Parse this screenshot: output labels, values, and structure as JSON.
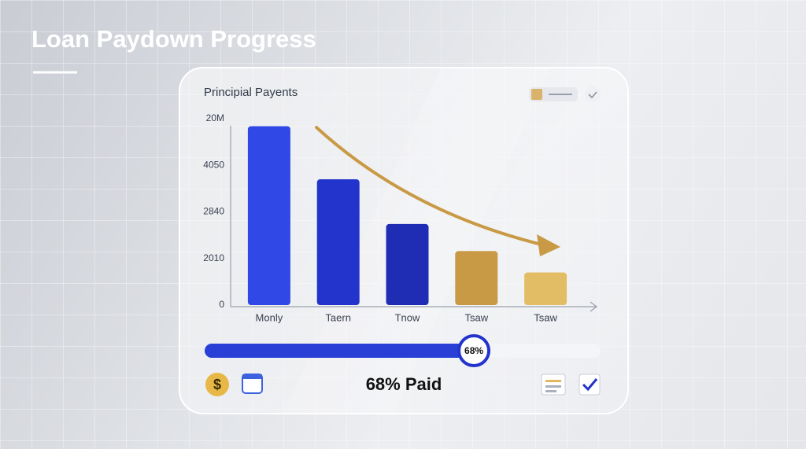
{
  "title": "Loan Paydown Progress",
  "chart_data": {
    "type": "bar",
    "title": "Principial Payents",
    "categories": [
      "Monly",
      "Taern",
      "Tnow",
      "Tsaw",
      "Tsaw"
    ],
    "values": [
      19.2,
      13.5,
      8.7,
      5.8,
      3.5
    ],
    "colors": [
      "#2f48e6",
      "#2334cc",
      "#1f2db5",
      "#c99a45",
      "#e3bd66"
    ],
    "ylim": [
      0,
      20
    ],
    "yticks": [
      0,
      {
        "value": 5,
        "label": "2010"
      },
      {
        "value": 10,
        "label": "2840"
      },
      {
        "value": 15,
        "label": "4050"
      },
      {
        "value": 20,
        "label": "20M"
      }
    ]
  },
  "progress": {
    "value": 68,
    "max": 100,
    "label": "68%",
    "caption": "68% Paid"
  },
  "icons": {
    "dollar": "$"
  }
}
